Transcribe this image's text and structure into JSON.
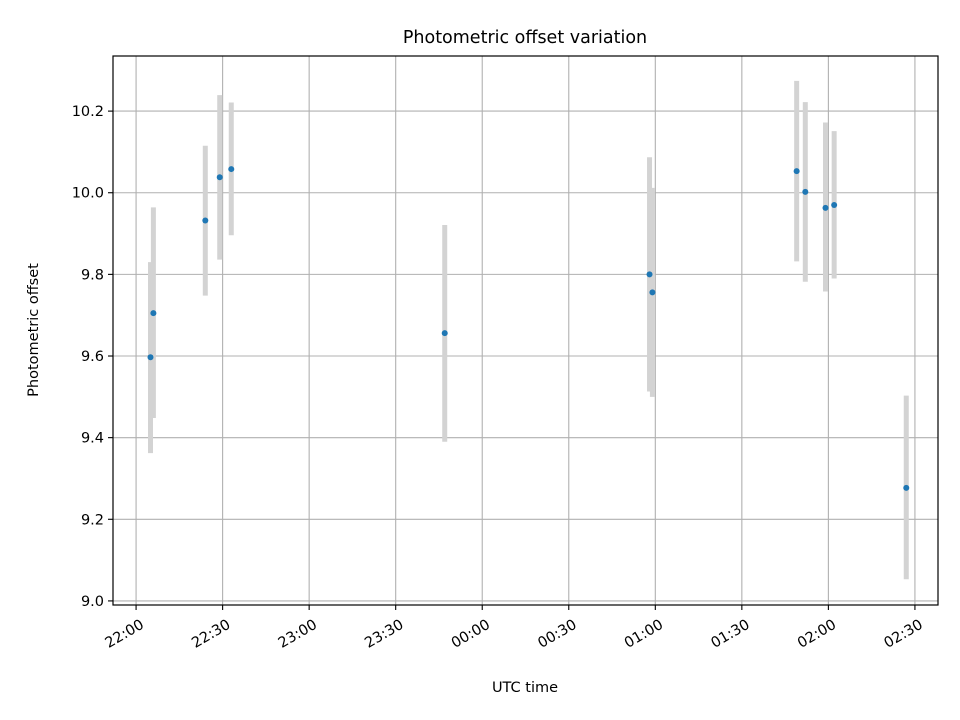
{
  "chart_data": {
    "type": "scatter",
    "title": "Photometric offset variation",
    "xlabel": "UTC time",
    "ylabel": "Photometric offset",
    "xlim": [
      "21:52",
      "02:38"
    ],
    "ylim": [
      8.99,
      10.335
    ],
    "x_ticks": [
      "22:00",
      "22:30",
      "23:00",
      "23:30",
      "00:00",
      "00:30",
      "01:00",
      "01:30",
      "02:00",
      "02:30"
    ],
    "y_ticks": [
      "9.0",
      "9.2",
      "9.4",
      "9.6",
      "9.8",
      "10.0",
      "10.2"
    ],
    "grid": true,
    "colors": {
      "point": "#1f77b4",
      "error_bar": "#d3d3d3",
      "grid": "#b0b0b0"
    },
    "series": [
      {
        "points": [
          {
            "x": "22:05",
            "y": 9.597,
            "low": 9.362,
            "high": 9.83
          },
          {
            "x": "22:06",
            "y": 9.705,
            "low": 9.448,
            "high": 9.964
          },
          {
            "x": "22:24",
            "y": 9.932,
            "low": 9.748,
            "high": 10.115
          },
          {
            "x": "22:29",
            "y": 10.038,
            "low": 9.836,
            "high": 10.239
          },
          {
            "x": "22:33",
            "y": 10.058,
            "low": 9.896,
            "high": 10.221
          },
          {
            "x": "23:47",
            "y": 9.656,
            "low": 9.39,
            "high": 9.921
          },
          {
            "x": "00:58",
            "y": 9.8,
            "low": 9.513,
            "high": 10.087
          },
          {
            "x": "00:59",
            "y": 9.756,
            "low": 9.5,
            "high": 10.012
          },
          {
            "x": "01:49",
            "y": 10.053,
            "low": 9.832,
            "high": 10.274
          },
          {
            "x": "01:52",
            "y": 10.002,
            "low": 9.782,
            "high": 10.222
          },
          {
            "x": "01:59",
            "y": 9.963,
            "low": 9.758,
            "high": 10.172
          },
          {
            "x": "02:02",
            "y": 9.97,
            "low": 9.79,
            "high": 10.151
          },
          {
            "x": "02:27",
            "y": 9.277,
            "low": 9.053,
            "high": 9.503
          }
        ]
      }
    ]
  }
}
